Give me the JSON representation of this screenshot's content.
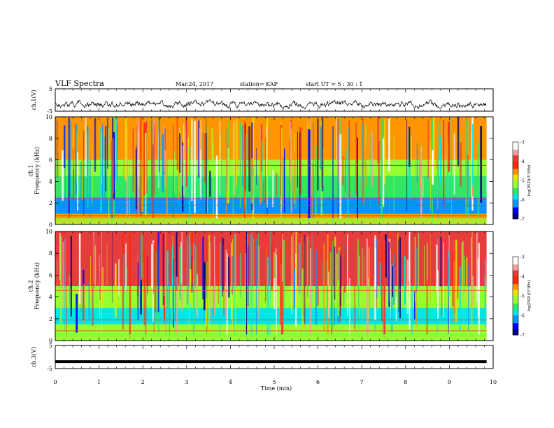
{
  "header": {
    "title": "VLF Spectra",
    "date": "Mar.24, 2017",
    "station": "station= KAP",
    "start": "start  UT  =   5  : 30 : 1"
  },
  "colors": {
    "colormap": [
      "#000080",
      "#0000ff",
      "#0096ff",
      "#00e6e6",
      "#32e664",
      "#96ff32",
      "#e6e600",
      "#ff9600",
      "#ff2800",
      "#e63c3c",
      "#f0a0a0",
      "#ffffff"
    ],
    "axis": "#000000",
    "grid_line": "#8b2a2a"
  },
  "chart_data": [
    {
      "panel": "ch1-waveform",
      "type": "line",
      "ylabel": "ch.1(V)",
      "ylim": [
        -5,
        5
      ],
      "yticks": [
        "5",
        "-5"
      ],
      "xlim": [
        0,
        10
      ],
      "description_level": "noisy signal near -2 V"
    },
    {
      "panel": "ch1-spectrogram",
      "type": "heatmap",
      "ylabel": "ch.1\nFrequency (kHz)",
      "ylim": [
        0,
        10
      ],
      "yticks": [
        "0",
        "2",
        "4",
        "6",
        "8",
        "10"
      ],
      "xlim": [
        0,
        10
      ],
      "colorbar": {
        "label": "log(PSD)(V²/Hz)",
        "range": [
          -7,
          -3
        ],
        "ticks": [
          "-3",
          "-4",
          "-5",
          "-6",
          "-7"
        ]
      }
    },
    {
      "panel": "ch2-spectrogram",
      "type": "heatmap",
      "ylabel": "ch.2\nFrequency (kHz)",
      "ylim": [
        0,
        10
      ],
      "yticks": [
        "0",
        "2",
        "4",
        "6",
        "8",
        "10"
      ],
      "xlim": [
        0,
        10
      ],
      "colorbar": {
        "label": "log(PSD)(V²/Hz)",
        "range": [
          -7,
          -3
        ],
        "ticks": [
          "-3",
          "-4",
          "-5",
          "-6",
          "-7"
        ]
      }
    },
    {
      "panel": "ch3-waveform",
      "type": "line",
      "ylabel": "ch.3(V)",
      "ylim": [
        -5,
        5
      ],
      "yticks": [
        "5",
        "-5"
      ],
      "xlim": [
        0,
        10
      ],
      "values_constant": -2
    }
  ],
  "xaxis": {
    "label": "Time (min)",
    "ticks": [
      "0",
      "1",
      "2",
      "3",
      "4",
      "5",
      "6",
      "7",
      "8",
      "9",
      "10"
    ]
  }
}
